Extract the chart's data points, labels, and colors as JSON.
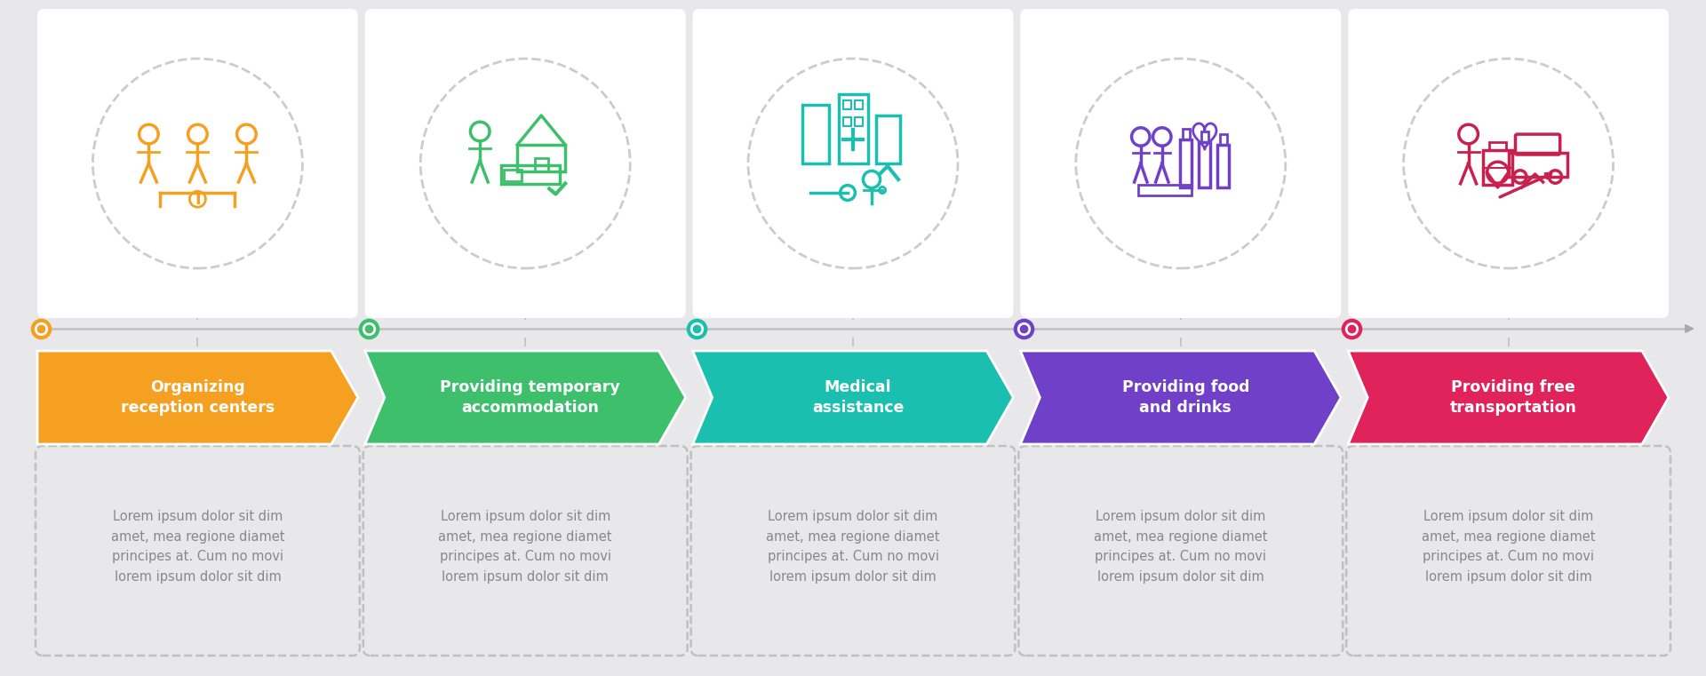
{
  "background_color": "#e8e8eb",
  "steps": [
    {
      "title": "Organizing\nreception centers",
      "color": "#F5A020",
      "dot_color": "#F5A020",
      "icon_color": "#F5A020"
    },
    {
      "title": "Providing temporary\naccommodation",
      "color": "#3DBF6B",
      "dot_color": "#3DBF6B",
      "icon_color": "#3DBF6B"
    },
    {
      "title": "Medical\nassistance",
      "color": "#1BBFB0",
      "dot_color": "#1BBFB0",
      "icon_color": "#1BBFB0"
    },
    {
      "title": "Providing food\nand drinks",
      "color": "#7040C8",
      "dot_color": "#7040C8",
      "icon_color": "#7040C8"
    },
    {
      "title": "Providing free\ntransportation",
      "color": "#E0235A",
      "dot_color": "#E0235A",
      "icon_color": "#C8204F"
    }
  ],
  "lorem_text": "Lorem ipsum dolor sit dim\namet, mea regione diamet\nprincipes at. Cum no movi\nlorem ipsum dolor sit dim",
  "arrow_text_color": "#ffffff",
  "body_text_color": "#888888",
  "num_steps": 5
}
